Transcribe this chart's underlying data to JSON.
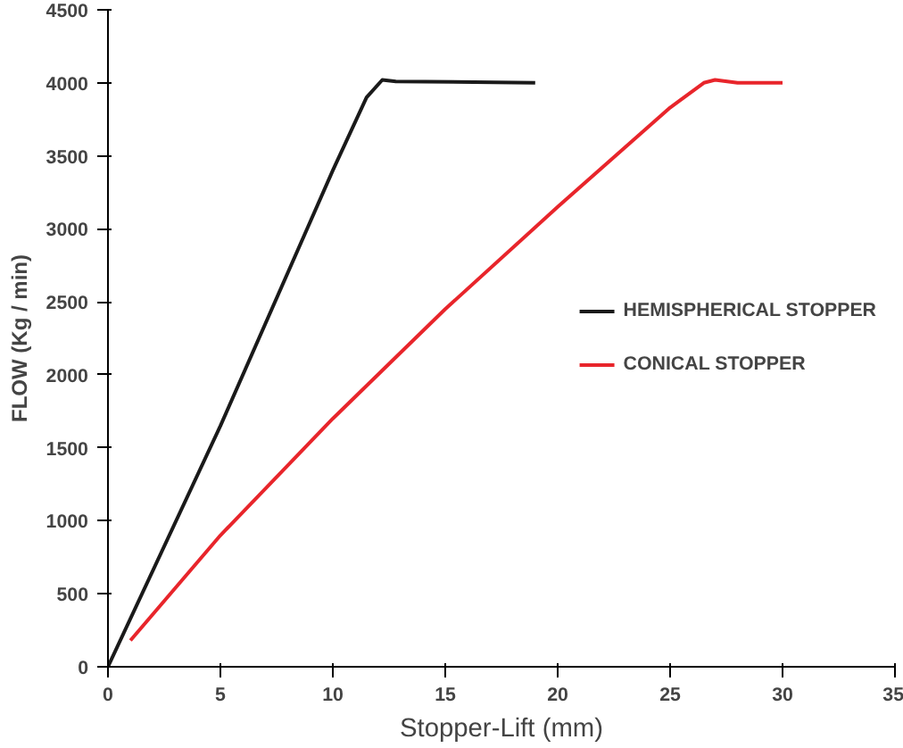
{
  "chart_data": {
    "type": "line",
    "xlabel": "Stopper-Lift (mm)",
    "ylabel": "FLOW (Kg / min)",
    "xlim": [
      0,
      35
    ],
    "ylim": [
      0,
      4500
    ],
    "xticks": [
      0,
      5,
      10,
      15,
      20,
      25,
      30,
      35
    ],
    "yticks": [
      0,
      500,
      1000,
      1500,
      2000,
      2500,
      3000,
      3500,
      4000,
      4500
    ],
    "grid": false,
    "legend": "right",
    "marker": "none",
    "line_style": "solid",
    "series": [
      {
        "name": "HEMISPHERICAL STOPPER",
        "color": "#1a1a1a",
        "x": [
          0,
          5,
          10,
          11.5,
          12.2,
          12.8,
          19
        ],
        "values": [
          0,
          1650,
          3400,
          3900,
          4020,
          4010,
          4000
        ]
      },
      {
        "name": "CONICAL STOPPER",
        "color": "#e8252b",
        "x": [
          1,
          5,
          10,
          15,
          20,
          25,
          26.5,
          27,
          28,
          30
        ],
        "values": [
          180,
          900,
          1700,
          2450,
          3150,
          3830,
          4000,
          4020,
          4000,
          4000
        ]
      }
    ]
  }
}
